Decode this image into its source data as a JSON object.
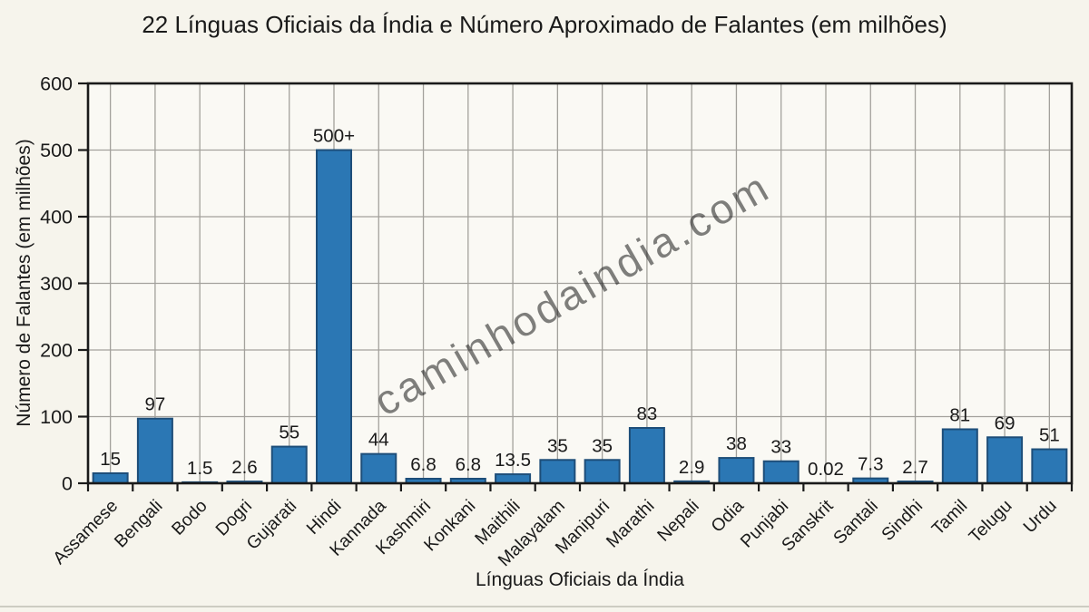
{
  "chart_data": {
    "type": "bar",
    "title": "22 Línguas Oficiais da Índia e Número Aproximado de Falantes (em milhões)",
    "xlabel": "Línguas Oficiais da Índia",
    "ylabel": "Número de Falantes (em milhões)",
    "categories": [
      "Assamese",
      "Bengali",
      "Bodo",
      "Dogri",
      "Gujarati",
      "Hindi",
      "Kannada",
      "Kashmiri",
      "Konkani",
      "Maithili",
      "Malayalam",
      "Manipuri",
      "Marathi",
      "Nepali",
      "Odia",
      "Punjabi",
      "Sanskrit",
      "Santali",
      "Sindhi",
      "Tamil",
      "Telugu",
      "Urdu"
    ],
    "values": [
      15,
      97,
      1.5,
      2.6,
      55,
      500,
      44,
      6.8,
      6.8,
      13.5,
      35,
      35,
      83,
      2.9,
      38,
      33,
      0.02,
      7.3,
      2.7,
      81,
      69,
      51
    ],
    "value_labels": [
      "15",
      "97",
      "1.5",
      "2.6",
      "55",
      "500+",
      "44",
      "6.8",
      "6.8",
      "13.5",
      "35",
      "35",
      "83",
      "2.9",
      "38",
      "33",
      "0.02",
      "7.3",
      "2.7",
      "81",
      "69",
      "51"
    ],
    "yticks": [
      0,
      100,
      200,
      300,
      400,
      500,
      600
    ],
    "ylim": [
      0,
      600
    ],
    "grid": true,
    "legend": "none",
    "bar_color": "#2b77b4",
    "bar_border_color": "#1e4e79",
    "grid_color": "#a3a19c",
    "axis_color": "#1a1a1a",
    "plot_background": "#faf9f4"
  },
  "watermark": {
    "text": "caminhodaindia.com",
    "color": "#cec19f"
  }
}
